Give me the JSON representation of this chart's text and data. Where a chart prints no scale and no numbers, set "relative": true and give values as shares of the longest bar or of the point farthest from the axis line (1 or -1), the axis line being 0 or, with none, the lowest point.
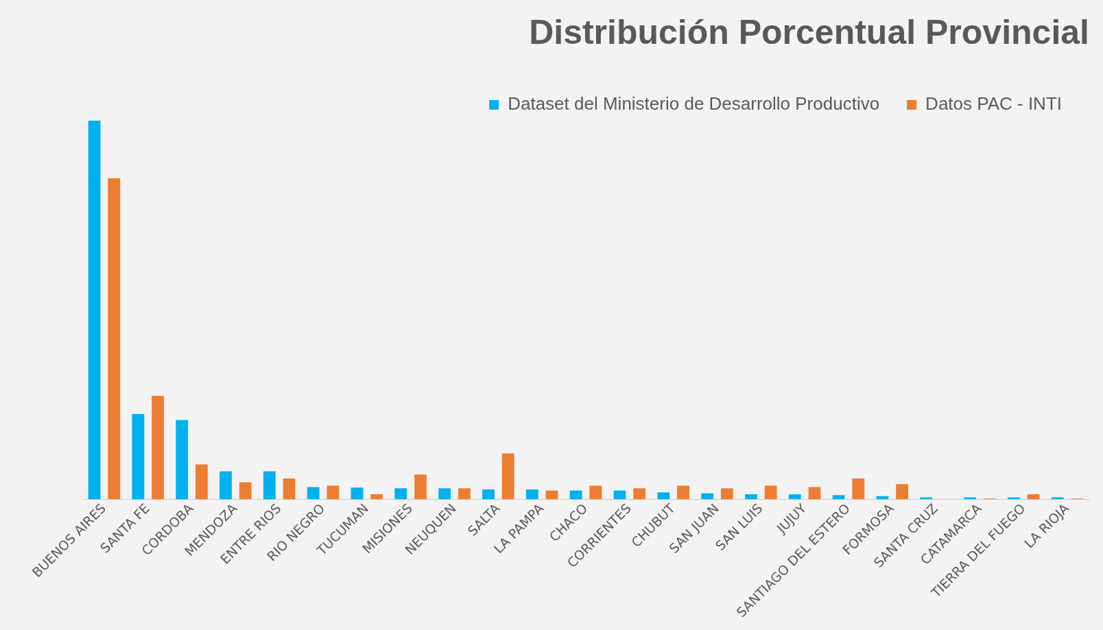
{
  "chart_data": {
    "type": "bar",
    "title": "Distribución Porcentual Provincial",
    "relative": true,
    "legend": "top right",
    "grid": false,
    "categories": [
      "BUENOS AIRES",
      "SANTA FE",
      "CORDOBA",
      "MENDOZA",
      "ENTRE RIOS",
      "RIO NEGRO",
      "TUCUMAN",
      "MISIONES",
      "NEUQUEN",
      "SALTA",
      "LA PAMPA",
      "CHACO",
      "CORRIENTES",
      "CHUBUT",
      "SAN JUAN",
      "SAN LUIS",
      "JUJUY",
      "SANTIAGO DEL ESTERO",
      "FORMOSA",
      "SANTA CRUZ",
      "CATAMARCA",
      "TIERRA DEL FUEGO",
      "LA RIOJA"
    ],
    "series": [
      {
        "name": "Dataset del Ministerio de Desarrollo Productivo",
        "color": "#00b0f0",
        "values": [
          1,
          0.225,
          0.209,
          0.074,
          0.074,
          0.032,
          0.031,
          0.029,
          0.029,
          0.026,
          0.026,
          0.023,
          0.023,
          0.018,
          0.016,
          0.013,
          0.013,
          0.011,
          0.008,
          0.005,
          0.005,
          0.005,
          0.005
        ]
      },
      {
        "name": "Datos PAC - INTI",
        "color": "#ed7d31",
        "values": [
          0.848,
          0.273,
          0.092,
          0.045,
          0.055,
          0.036,
          0.013,
          0.065,
          0.029,
          0.121,
          0.023,
          0.036,
          0.029,
          0.036,
          0.029,
          0.036,
          0.032,
          0.055,
          0.04,
          0,
          0.002,
          0.013,
          0.002
        ]
      }
    ]
  }
}
